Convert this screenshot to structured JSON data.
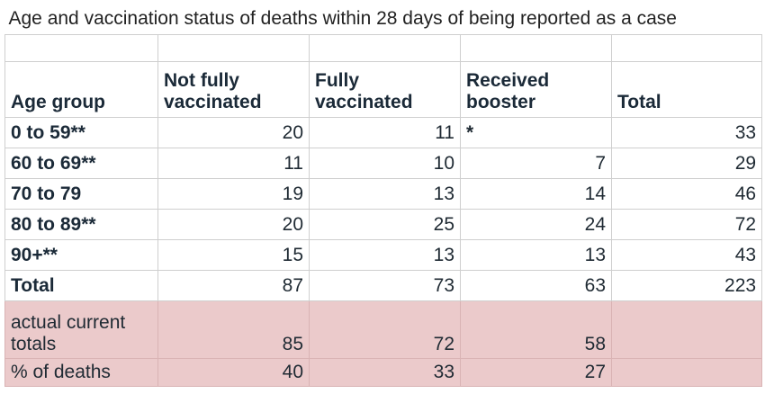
{
  "title": "Age and vaccination status of deaths within 28 days of being reported as a case",
  "headers": [
    "Age group",
    "Not fully vaccinated",
    "Fully vaccinated",
    "Received booster",
    "Total"
  ],
  "rows": [
    {
      "label": "0 to 59**",
      "not_fully": "20",
      "fully": "11",
      "booster": "*",
      "total": "33"
    },
    {
      "label": "60 to 69**",
      "not_fully": "11",
      "fully": "10",
      "booster": "7",
      "total": "29"
    },
    {
      "label": "70 to 79",
      "not_fully": "19",
      "fully": "13",
      "booster": "14",
      "total": "46"
    },
    {
      "label": "80 to 89**",
      "not_fully": "20",
      "fully": "25",
      "booster": "24",
      "total": "72"
    },
    {
      "label": "90+**",
      "not_fully": "15",
      "fully": "13",
      "booster": "13",
      "total": "43"
    },
    {
      "label": "Total",
      "not_fully": "87",
      "fully": "73",
      "booster": "63",
      "total": "223"
    }
  ],
  "highlight_rows": [
    {
      "label": "actual current totals",
      "not_fully": "85",
      "fully": "72",
      "booster": "58",
      "total": ""
    },
    {
      "label": "% of deaths",
      "not_fully": "40",
      "fully": "33",
      "booster": "27",
      "total": ""
    }
  ],
  "colors": {
    "highlight_background": "#ebcacb",
    "grid": "#cfcfcf",
    "text": "#1f2a33"
  }
}
